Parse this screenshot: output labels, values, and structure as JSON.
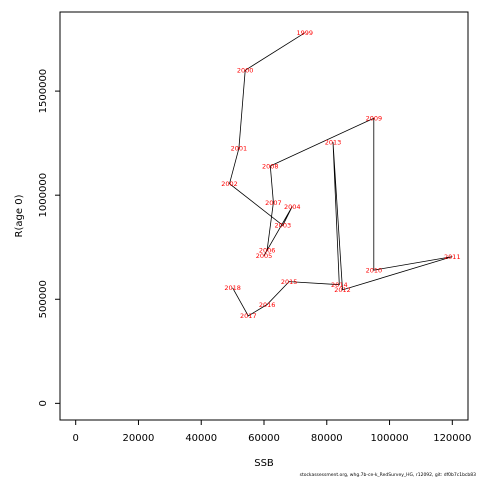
{
  "chart_data": {
    "type": "line",
    "xlabel": "SSB",
    "ylabel": "R(age 0)",
    "xlim": [
      -5000,
      125000
    ],
    "ylim": [
      -80000,
      1880000
    ],
    "x_ticks": [
      0,
      20000,
      40000,
      60000,
      80000,
      100000,
      120000
    ],
    "y_ticks": [
      0,
      500000,
      1000000,
      1500000
    ],
    "line_color": "#000000",
    "label_color": "#ff0000",
    "points": [
      {
        "year": "1999",
        "x": 73000,
        "y": 1780000
      },
      {
        "year": "2000",
        "x": 54000,
        "y": 1600000
      },
      {
        "year": "2001",
        "x": 52000,
        "y": 1225000
      },
      {
        "year": "2002",
        "x": 49000,
        "y": 1055000
      },
      {
        "year": "2003",
        "x": 66000,
        "y": 855000
      },
      {
        "year": "2004",
        "x": 69000,
        "y": 945000
      },
      {
        "year": "2005",
        "x": 60000,
        "y": 710000
      },
      {
        "year": "2006",
        "x": 61000,
        "y": 735000
      },
      {
        "year": "2007",
        "x": 63000,
        "y": 965000
      },
      {
        "year": "2008",
        "x": 62000,
        "y": 1140000
      },
      {
        "year": "2009",
        "x": 95000,
        "y": 1370000
      },
      {
        "year": "2010",
        "x": 95000,
        "y": 640000
      },
      {
        "year": "2011",
        "x": 120000,
        "y": 705000
      },
      {
        "year": "2012",
        "x": 85000,
        "y": 545000
      },
      {
        "year": "2013",
        "x": 82000,
        "y": 1255000
      },
      {
        "year": "2014",
        "x": 84000,
        "y": 570000
      },
      {
        "year": "2015",
        "x": 68000,
        "y": 585000
      },
      {
        "year": "2016",
        "x": 61000,
        "y": 475000
      },
      {
        "year": "2017",
        "x": 55000,
        "y": 420000
      },
      {
        "year": "2018",
        "x": 50000,
        "y": 555000
      }
    ]
  },
  "footer": "stockassessment.org, whg.7b-ce-k_RedSurvey_HG, r12092, git: df0b7c1bcb83"
}
